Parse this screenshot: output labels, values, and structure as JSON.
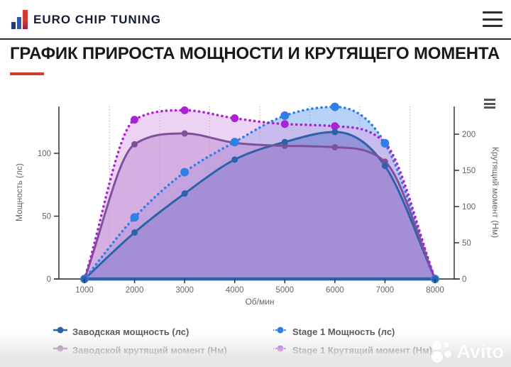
{
  "header": {
    "brand": "EURO CHIP TUNING",
    "menu_icon": "hamburger-icon"
  },
  "title": {
    "text": "ГРАФИК ПРИРОСТА МОЩНОСТИ И КРУТЯЩЕГО МОМЕНТА",
    "underline_color": "#d6392e"
  },
  "chart_data": {
    "type": "area",
    "title": "",
    "x": [
      1000,
      2000,
      3000,
      4000,
      5000,
      6000,
      7000,
      8000
    ],
    "xlabel": "Об/мин",
    "x_ticks": [
      1000,
      2000,
      3000,
      4000,
      5000,
      6000,
      7000,
      8000
    ],
    "minor_gridlines_x": [
      1500,
      2500,
      3500,
      4500,
      5500,
      6500,
      7500
    ],
    "grid": "dotted-minor-vertical",
    "legend_position": "bottom",
    "y_left": {
      "label": "Мощность (лс)",
      "ticks": [
        0,
        50,
        100
      ],
      "lim": [
        0,
        140
      ]
    },
    "y_right": {
      "label": "Крутящий момент (Нм)",
      "ticks": [
        0,
        50,
        100,
        150,
        200
      ],
      "lim": [
        0,
        240
      ]
    },
    "series": [
      {
        "name": "Заводская мощность (лс)",
        "axis": "left",
        "style": "solid",
        "color": "#2c62a8",
        "fill": "rgba(46,103,174,0.92)",
        "marker_radius": 4.5,
        "values": [
          0,
          37,
          68,
          95,
          109,
          117,
          90,
          0
        ]
      },
      {
        "name": "Stage 1 Мощность (лс)",
        "axis": "left",
        "style": "dotted",
        "color": "#2f7fe8",
        "fill": "rgba(93,155,237,0.45)",
        "marker_radius": 6,
        "values": [
          0,
          49,
          85,
          109,
          130,
          137,
          108,
          0
        ]
      },
      {
        "name": "Заводской крутящий момент (Нм)",
        "axis": "right",
        "style": "solid",
        "color": "#7e529b",
        "fill": "rgba(156,100,180,0.45)",
        "marker_radius": 4.5,
        "values": [
          0,
          186,
          201,
          188,
          184,
          182,
          162,
          0
        ]
      },
      {
        "name": "Stage 1 Крутящий момент (Нм)",
        "axis": "right",
        "style": "dotted",
        "color": "#ab22d4",
        "fill": "rgba(217,166,232,0.5)",
        "marker_radius": 5.5,
        "values": [
          0,
          220,
          233,
          222,
          214,
          211,
          188,
          0
        ]
      }
    ]
  },
  "legend": {
    "items": [
      {
        "label": "Заводская мощность (лс)",
        "color": "#2c62a8",
        "style": "solid"
      },
      {
        "label": "Stage 1 Мощность (лс)",
        "color": "#2f7fe8",
        "style": "dotted"
      },
      {
        "label": "Заводской крутящий момент (Нм)",
        "color": "#7e529b",
        "style": "solid"
      },
      {
        "label": "Stage 1 Крутящий момент (Нм)",
        "color": "#ab22d4",
        "style": "dotted"
      }
    ]
  },
  "watermark": {
    "text": "Avito"
  }
}
